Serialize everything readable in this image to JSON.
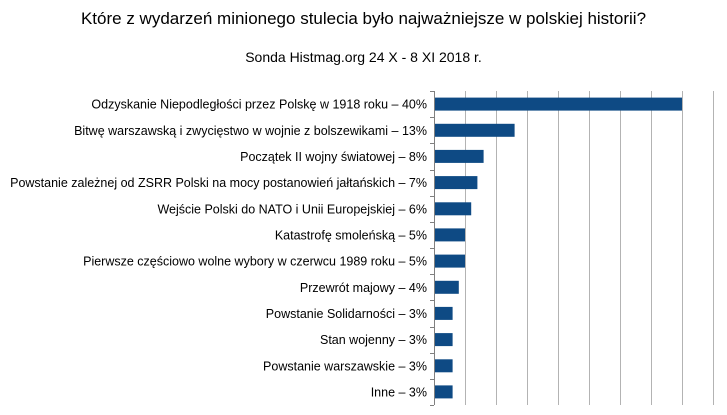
{
  "chart_data": {
    "type": "bar",
    "orientation": "horizontal",
    "title": "Które z wydarzeń minionego stulecia było najważniejsze w polskiej historii?",
    "subtitle": "Sonda Histmag.org 24 X - 8 XI 2018 r.",
    "categories": [
      "Odzyskanie Niepodległości przez Polskę w 1918 roku – 40%",
      "Bitwę warszawską i zwycięstwo w wojnie z bolszewikami – 13%",
      "Początek II wojny światowej – 8%",
      "Powstanie zależnej od ZSRR Polski na mocy postanowień jałtańskich – 7%",
      "Wejście Polski do NATO i Unii Europejskiej – 6%",
      "Katastrofę smoleńską – 5%",
      "Pierwsze częściowo wolne wybory w czerwcu 1989 roku – 5%",
      "Przewrót majowy – 4%",
      "Powstanie Solidarności – 3%",
      "Stan wojenny – 3%",
      "Powstanie warszawskie – 3%",
      "Inne – 3%"
    ],
    "values": [
      40,
      13,
      8,
      7,
      6,
      5,
      5,
      4,
      3,
      3,
      3,
      3
    ],
    "xlim": [
      0,
      45
    ],
    "grid": true,
    "bar_color": "#0e4a84",
    "grid_color": "#b3b3b3"
  }
}
